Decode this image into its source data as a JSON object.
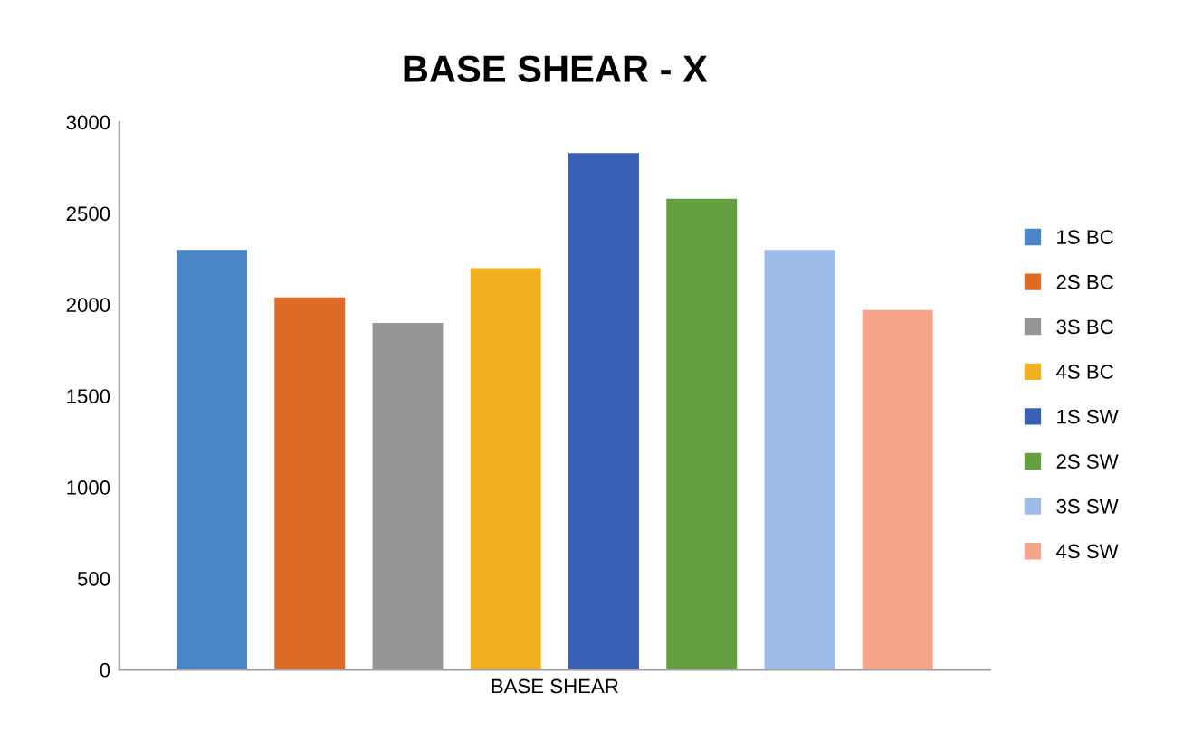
{
  "chart_data": {
    "type": "bar",
    "title": "BASE SHEAR - X",
    "categories": [
      "BASE SHEAR"
    ],
    "series": [
      {
        "name": "1S BC",
        "color": "#4a86c5",
        "values": [
          2300
        ]
      },
      {
        "name": "2S BC",
        "color": "#dd6a25",
        "values": [
          2040
        ]
      },
      {
        "name": "3S BC",
        "color": "#959595",
        "values": [
          1900
        ]
      },
      {
        "name": "4S BC",
        "color": "#f0b020",
        "values": [
          2200
        ]
      },
      {
        "name": "1S SW",
        "color": "#3a60b5",
        "values": [
          2830
        ]
      },
      {
        "name": "2S SW",
        "color": "#65a040",
        "values": [
          2580
        ]
      },
      {
        "name": "3S SW",
        "color": "#9dbde8",
        "values": [
          2300
        ]
      },
      {
        "name": "4S SW",
        "color": "#f4a488",
        "values": [
          1970
        ]
      }
    ],
    "ylim": [
      0,
      3000
    ],
    "yticks": [
      0,
      500,
      1000,
      1500,
      2000,
      2500,
      3000
    ],
    "grid": false,
    "legend": "right"
  }
}
